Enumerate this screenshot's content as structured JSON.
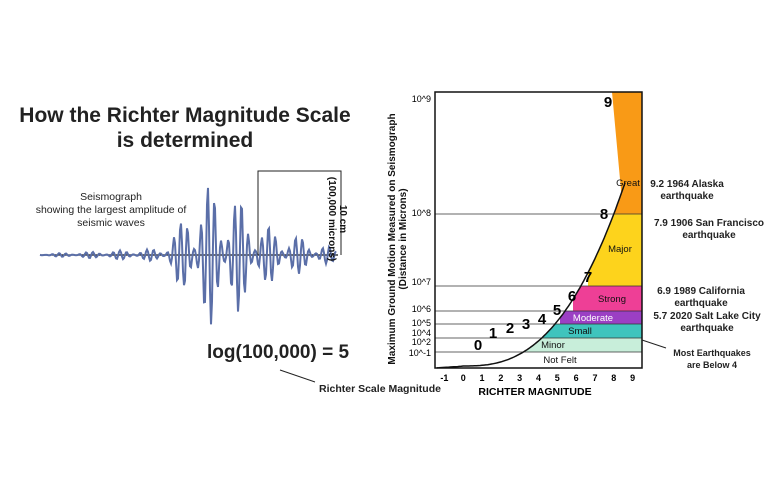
{
  "left_panel": {
    "title_line1": "How the Richter Magnitude Scale",
    "title_line2": "is determined",
    "seismograph_line1": "Seismograph",
    "seismograph_line2": "showing the largest amplitude of",
    "seismograph_line3": "seismic waves",
    "amplitude_line1": "10 cm",
    "amplitude_line2": "(100,000 microns)",
    "formula": "log(100,000) = 5",
    "magnitude_caption": "Richter Scale Magnitude"
  },
  "chart_data": {
    "type": "area",
    "xlabel": "RICHTER MAGNITUDE",
    "ylabel_line1": "Maximum Ground Motion Measured on Seismograph",
    "ylabel_line2": "(Distance in Microns)",
    "x_ticks": [
      "-1",
      "0",
      "1",
      "2",
      "3",
      "4",
      "5",
      "6",
      "7",
      "8",
      "9"
    ],
    "y_ticks": [
      "10^9",
      "10^8",
      "10^7",
      "10^6",
      "10^5",
      "10^4",
      "10^2",
      "10^-1"
    ],
    "xlim": [
      -1.5,
      9.5
    ],
    "curve_labels": [
      "0",
      "1",
      "2",
      "3",
      "4",
      "5",
      "6",
      "7",
      "8",
      "9"
    ],
    "bands": [
      {
        "name": "Not Felt",
        "color": "#ffffff"
      },
      {
        "name": "Minor",
        "color": "#c8eeda"
      },
      {
        "name": "Small",
        "color": "#3fc4bd"
      },
      {
        "name": "Moderate",
        "color": "#9b3fc4"
      },
      {
        "name": "Strong",
        "color": "#ee3f96"
      },
      {
        "name": "Major",
        "color": "#fdd31c"
      },
      {
        "name": "Great",
        "color": "#f99a16"
      }
    ],
    "annotations": [
      {
        "line1": "9.2 1964 Alaska",
        "line2": "earthquake"
      },
      {
        "line1": "7.9 1906 San Francisco",
        "line2": "earthquake"
      },
      {
        "line1": "6.9 1989 California",
        "line2": "earthquake"
      },
      {
        "line1": "5.7 2020 Salt Lake City",
        "line2": "earthquake"
      },
      {
        "line1": "Most Earthquakes",
        "line2": "are Below 4"
      }
    ]
  }
}
